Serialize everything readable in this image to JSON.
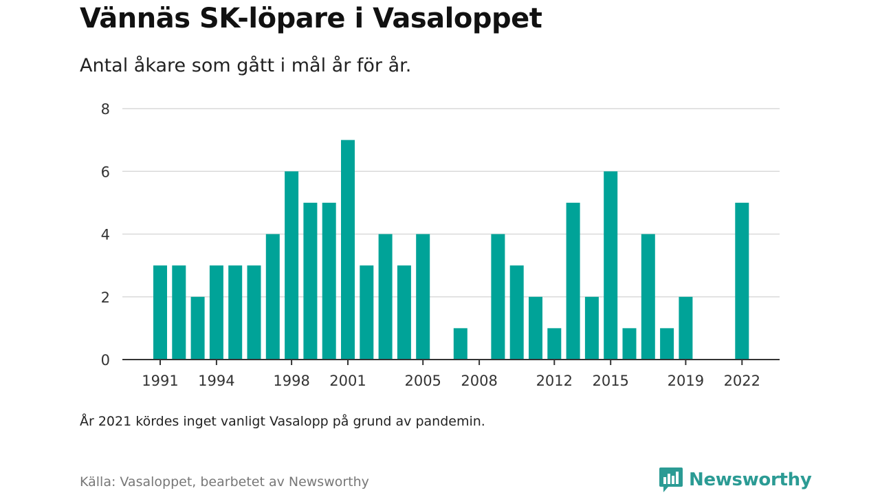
{
  "header": {
    "title": "Vännäs SK-löpare i Vasaloppet",
    "subtitle": "Antal åkare som gått i mål år för år."
  },
  "footer": {
    "note": "År 2021 kördes inget vanligt Vasalopp på grund av pandemin.",
    "source": "Källa: Vasaloppet, bearbetet av Newsworthy",
    "brand": "Newsworthy"
  },
  "colors": {
    "bar": "#00a398",
    "grid": "#d9d9d9",
    "axis": "#333333",
    "brand": "#2b9b94"
  },
  "icons": {
    "brand_logo": "bar-chart-speech-bubble-icon"
  },
  "chart_data": {
    "type": "bar",
    "title": "Vännäs SK-löpare i Vasaloppet",
    "subtitle": "Antal åkare som gått i mål år för år.",
    "xlabel": "",
    "ylabel": "",
    "ylim": [
      0,
      8
    ],
    "yticks": [
      0,
      2,
      4,
      6,
      8
    ],
    "xticks": [
      1991,
      1994,
      1998,
      2001,
      2005,
      2008,
      2012,
      2015,
      2019,
      2022
    ],
    "grid": true,
    "legend": "none",
    "categories": [
      1991,
      1992,
      1993,
      1994,
      1995,
      1996,
      1997,
      1998,
      1999,
      2000,
      2001,
      2002,
      2003,
      2004,
      2005,
      2006,
      2007,
      2008,
      2009,
      2010,
      2011,
      2012,
      2013,
      2014,
      2015,
      2016,
      2017,
      2018,
      2019,
      2020,
      2021,
      2022
    ],
    "values": [
      3,
      3,
      2,
      3,
      3,
      3,
      4,
      6,
      5,
      5,
      7,
      3,
      4,
      3,
      4,
      0,
      1,
      0,
      4,
      3,
      2,
      1,
      5,
      2,
      6,
      1,
      4,
      1,
      2,
      0,
      null,
      5
    ]
  }
}
